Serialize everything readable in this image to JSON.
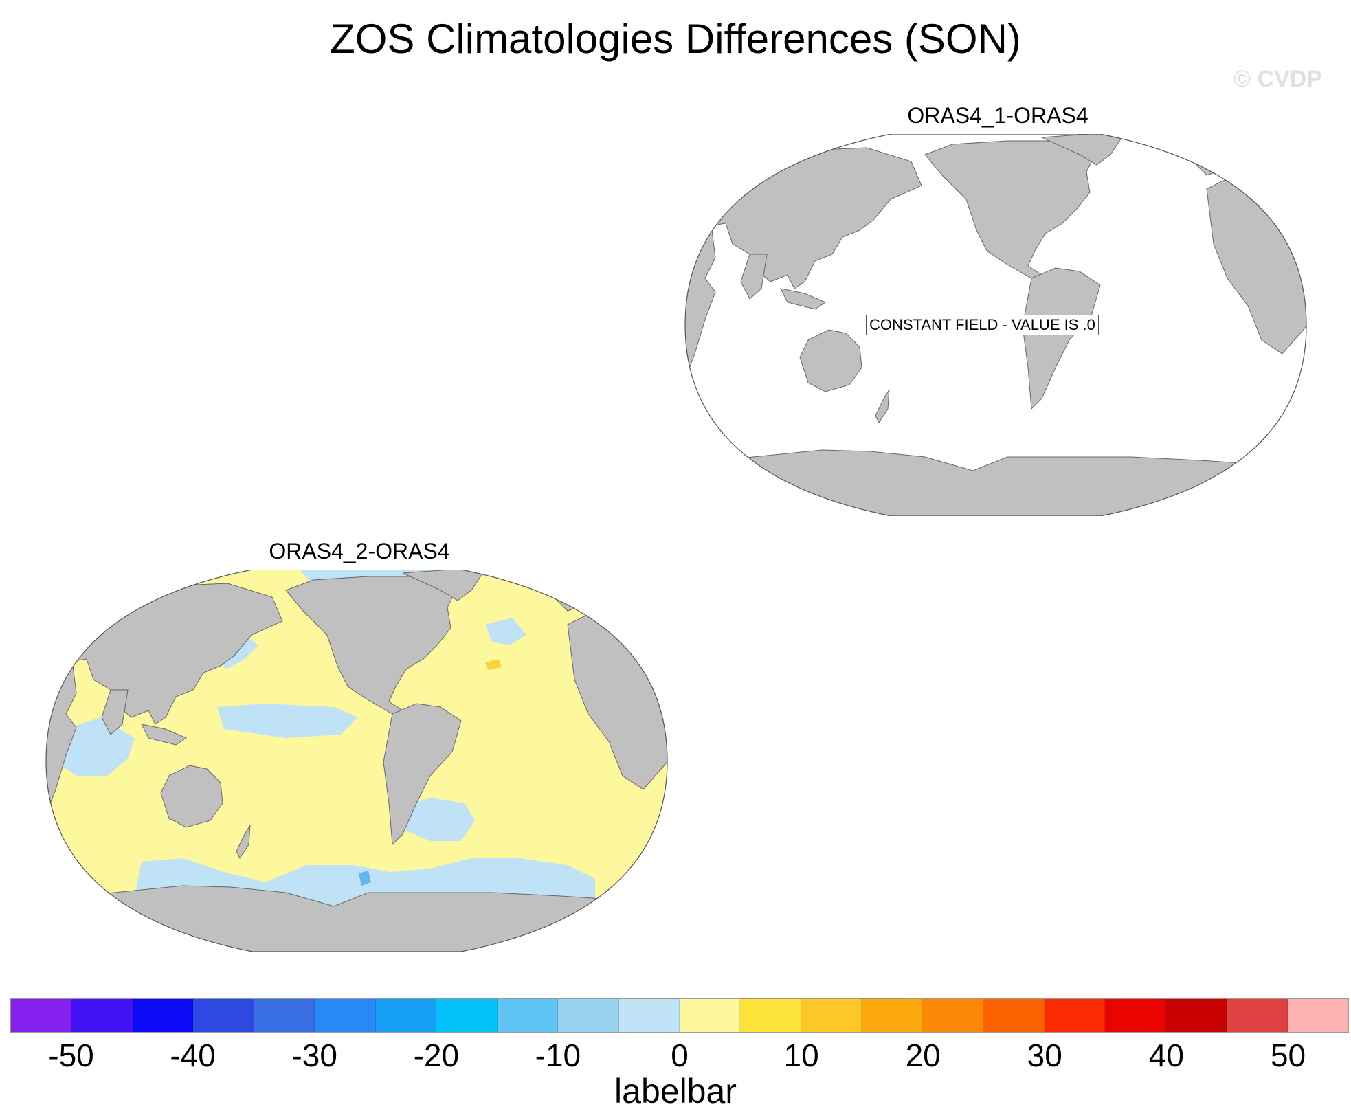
{
  "title": "ZOS Climatologies Differences (SON)",
  "watermark": "© CVDP",
  "panels": [
    {
      "title": "ORAS4_1-ORAS4",
      "note": "CONSTANT FIELD - VALUE IS .0"
    },
    {
      "title": "ORAS4_2-ORAS4"
    }
  ],
  "colors": {
    "land": "#c0c0c0",
    "ocean_constant": "#ffffff",
    "neutral_negative": "#bfe2f6",
    "neutral_positive": "#fdf89e",
    "strong_positive": "#fcd23a",
    "strong_negative": "#5cb8f0"
  },
  "colorbar": {
    "label": "labelbar",
    "ticks": [
      "-50",
      "-40",
      "-30",
      "-20",
      "-10",
      "0",
      "10",
      "20",
      "30",
      "40",
      "50"
    ],
    "colors": [
      "#8520ee",
      "#4413f5",
      "#0c08f8",
      "#2d49e2",
      "#3a6fe4",
      "#2888f8",
      "#189ff6",
      "#05c2fa",
      "#5fc4f4",
      "#98d2ee",
      "#bfe2f6",
      "#fdf89e",
      "#fde23a",
      "#fcc727",
      "#fca70e",
      "#fc8905",
      "#fe6302",
      "#fb2a03",
      "#ea0400",
      "#c80200",
      "#de4243",
      "#fdb2b2"
    ]
  }
}
